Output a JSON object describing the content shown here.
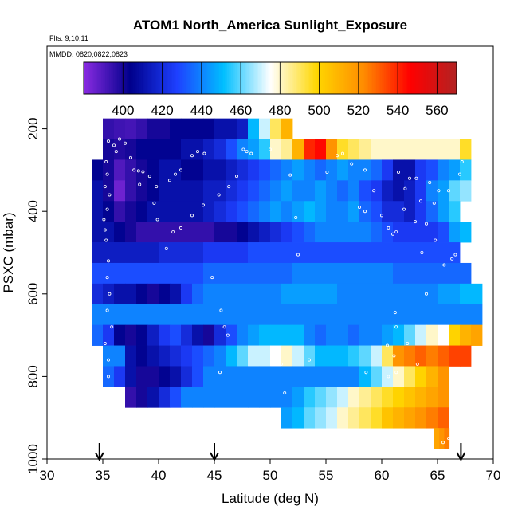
{
  "chart_data": {
    "type": "heatmap",
    "title": "ATOM1 North_America Sunlight_Exposure",
    "flights_note": "Flts: 9,10,11",
    "dates_note": "MMDD: 0820,0822,0823",
    "xlabel": "Latitude (deg N)",
    "ylabel": "PSXC (mbar)",
    "xlim": [
      30,
      70
    ],
    "ylim": [
      1000,
      0
    ],
    "x_ticks": [
      "30",
      "35",
      "40",
      "45",
      "50",
      "55",
      "60",
      "65",
      "70"
    ],
    "y_ticks": [
      "200",
      "400",
      "600",
      "800",
      "1000"
    ],
    "colorbar": {
      "range": [
        380,
        570
      ],
      "ticks": [
        "400",
        "420",
        "440",
        "460",
        "480",
        "500",
        "520",
        "540",
        "560"
      ],
      "colors": [
        "#8a2be2",
        "#00008b",
        "#1e40ff",
        "#00bfff",
        "#ffffff",
        "#ffd700",
        "#ff8c00",
        "#ff0000",
        "#b22222"
      ]
    },
    "arrows_latitude": [
      34.7,
      45.0,
      67.1
    ],
    "rows": [
      {
        "p": 200,
        "x0": 35.0,
        "dx": 1.0,
        "values": [
          395,
          393,
          392,
          395,
          400,
          400,
          405,
          405,
          405,
          405,
          410,
          410,
          415,
          450,
          470,
          490,
          510
        ]
      },
      {
        "p": 250,
        "x0": 35.0,
        "dx": 1.0,
        "values": [
          400,
          398,
          400,
          405,
          405,
          405,
          405,
          410,
          410,
          415,
          420,
          430,
          440,
          445,
          455,
          480,
          485,
          510,
          540,
          545,
          520,
          495,
          490,
          485,
          480,
          480,
          480,
          480,
          480,
          480,
          480,
          480,
          495
        ]
      },
      {
        "p": 300,
        "x0": 34.0,
        "dx": 1.0,
        "values": [
          405,
          400,
          390,
          395,
          400,
          405,
          410,
          410,
          405,
          405,
          410,
          410,
          415,
          420,
          425,
          430,
          435,
          440,
          445,
          440,
          435,
          440,
          445,
          440,
          440,
          435,
          425,
          410,
          410,
          425,
          430,
          440,
          445,
          455
        ]
      },
      {
        "p": 350,
        "x0": 34.0,
        "dx": 1.0,
        "values": [
          410,
          400,
          385,
          395,
          400,
          405,
          410,
          410,
          410,
          410,
          415,
          415,
          420,
          425,
          430,
          435,
          440,
          445,
          440,
          440,
          445,
          440,
          435,
          440,
          430,
          425,
          415,
          410,
          415,
          425,
          440,
          445,
          460,
          465
        ]
      },
      {
        "p": 400,
        "x0": 34.0,
        "dx": 1.0,
        "values": [
          410,
          405,
          395,
          400,
          405,
          410,
          410,
          410,
          410,
          410,
          415,
          420,
          425,
          430,
          435,
          440,
          445,
          440,
          445,
          450,
          445,
          440,
          440,
          445,
          435,
          430,
          420,
          420,
          415,
          425,
          435,
          445,
          455
        ]
      },
      {
        "p": 450,
        "x0": 34.0,
        "dx": 1.0,
        "values": [
          410,
          410,
          405,
          400,
          395,
          395,
          395,
          395,
          395,
          395,
          395,
          400,
          400,
          405,
          410,
          415,
          420,
          425,
          430,
          435,
          440,
          440,
          440,
          440,
          440,
          435,
          430,
          425,
          425,
          425,
          425,
          430,
          445,
          450
        ]
      },
      {
        "p": 500,
        "x0": 34.0,
        "dx": 1.0,
        "values": [
          415,
          415,
          415,
          415,
          415,
          415,
          420,
          420,
          420,
          420,
          425,
          425,
          425,
          425,
          430,
          430,
          430,
          430,
          430,
          430,
          430,
          430,
          430,
          430,
          430,
          430,
          430,
          430,
          430,
          430,
          430,
          430,
          430
        ]
      },
      {
        "p": 550,
        "x0": 34.0,
        "dx": 1.0,
        "values": [
          430,
          430,
          430,
          430,
          430,
          430,
          430,
          430,
          430,
          430,
          435,
          435,
          435,
          435,
          435,
          435,
          435,
          435,
          440,
          440,
          440,
          440,
          440,
          440,
          440,
          440,
          440,
          435,
          435,
          435,
          435,
          435,
          435,
          435
        ]
      },
      {
        "p": 600,
        "x0": 34.0,
        "dx": 1.0,
        "values": [
          420,
          415,
          410,
          410,
          405,
          400,
          405,
          410,
          425,
          435,
          440,
          440,
          440,
          440,
          440,
          440,
          440,
          445,
          445,
          445,
          445,
          445,
          440,
          440,
          440,
          440,
          440,
          440,
          440,
          440,
          440,
          445,
          445,
          450,
          450
        ]
      },
      {
        "p": 650,
        "x0": 34.0,
        "dx": 1.0,
        "values": [
          440,
          440,
          440,
          440,
          440,
          440,
          440,
          440,
          440,
          440,
          440,
          440,
          440,
          440,
          440,
          440,
          440,
          440,
          440,
          440,
          440,
          440,
          440,
          440,
          440,
          440,
          440,
          440,
          440,
          440,
          440,
          440,
          440,
          440,
          440
        ]
      },
      {
        "p": 700,
        "x0": 34.0,
        "dx": 1.0,
        "values": [
          435,
          425,
          405,
          400,
          405,
          415,
          425,
          430,
          420,
          410,
          400,
          420,
          430,
          440,
          445,
          450,
          450,
          450,
          450,
          440,
          435,
          440,
          440,
          435,
          440,
          440,
          445,
          450,
          460,
          470,
          480,
          475,
          500,
          510,
          515
        ]
      },
      {
        "p": 750,
        "x0": 35.0,
        "dx": 1.0,
        "values": [
          440,
          440,
          410,
          405,
          410,
          415,
          420,
          425,
          430,
          435,
          440,
          450,
          460,
          470,
          470,
          475,
          480,
          470,
          460,
          450,
          450,
          450,
          455,
          460,
          470,
          490,
          520,
          525,
          530,
          525,
          530,
          535,
          535
        ]
      },
      {
        "p": 800,
        "x0": 35.0,
        "dx": 1.0,
        "values": [
          435,
          425,
          410,
          400,
          400,
          405,
          410,
          420,
          430,
          440,
          440,
          440,
          440,
          440,
          440,
          440,
          440,
          440,
          440,
          440,
          440,
          440,
          440,
          450,
          460,
          470,
          480,
          490,
          500,
          510,
          520
        ]
      },
      {
        "p": 850,
        "x0": 37.0,
        "dx": 1.0,
        "values": [
          395,
          400,
          410,
          420,
          430,
          440,
          440,
          440,
          440,
          440,
          440,
          440,
          440,
          440,
          440,
          445,
          455,
          460,
          465,
          470,
          480,
          485,
          490,
          495,
          500,
          505,
          510,
          515,
          520
        ]
      },
      {
        "p": 900,
        "x0": 51.0,
        "dx": 1.0,
        "values": [
          445,
          450,
          460,
          465,
          470,
          480,
          485,
          490,
          495,
          505,
          510,
          515,
          520,
          525,
          530
        ]
      },
      {
        "p": 950,
        "x0": 64.7,
        "dx": 0.45,
        "values": [
          515,
          520,
          525
        ]
      }
    ],
    "sample_points": [
      [
        35.5,
        230
      ],
      [
        36,
        240
      ],
      [
        36.5,
        225
      ],
      [
        37,
        235
      ],
      [
        36.2,
        255
      ],
      [
        35.3,
        280
      ],
      [
        35.4,
        310
      ],
      [
        35.2,
        340
      ],
      [
        35.6,
        360
      ],
      [
        35.4,
        395
      ],
      [
        35.1,
        420
      ],
      [
        35.2,
        445
      ],
      [
        35.3,
        470
      ],
      [
        35.5,
        520
      ],
      [
        35.4,
        560
      ],
      [
        35.6,
        600
      ],
      [
        35.4,
        640
      ],
      [
        35.8,
        680
      ],
      [
        35.2,
        720
      ],
      [
        35.5,
        760
      ],
      [
        35.5,
        800
      ],
      [
        37.5,
        270
      ],
      [
        37.8,
        300
      ],
      [
        38.2,
        302
      ],
      [
        38.6,
        304
      ],
      [
        38.3,
        335
      ],
      [
        39.2,
        315
      ],
      [
        39.8,
        340
      ],
      [
        39.6,
        380
      ],
      [
        39.9,
        420
      ],
      [
        41,
        325
      ],
      [
        42,
        300
      ],
      [
        43,
        265
      ],
      [
        43.5,
        255
      ],
      [
        44.1,
        260
      ],
      [
        44,
        385
      ],
      [
        43,
        410
      ],
      [
        42,
        440
      ],
      [
        41.3,
        450
      ],
      [
        40.7,
        490
      ],
      [
        41.5,
        310
      ],
      [
        44.8,
        560
      ],
      [
        45.6,
        640
      ],
      [
        45.9,
        680
      ],
      [
        46.2,
        700
      ],
      [
        45.5,
        790
      ],
      [
        45.4,
        360
      ],
      [
        46.3,
        340
      ],
      [
        47,
        315
      ],
      [
        47.6,
        250
      ],
      [
        47.9,
        255
      ],
      [
        48.3,
        260
      ],
      [
        50,
        250
      ],
      [
        51.8,
        312
      ],
      [
        52.3,
        415
      ],
      [
        52.5,
        505
      ],
      [
        55.1,
        305
      ],
      [
        56,
        265
      ],
      [
        56.5,
        260
      ],
      [
        57.3,
        285
      ],
      [
        58.5,
        300
      ],
      [
        59.3,
        350
      ],
      [
        58,
        390
      ],
      [
        58.5,
        400
      ],
      [
        60,
        410
      ],
      [
        61.3,
        450
      ],
      [
        60.6,
        440
      ],
      [
        61,
        455
      ],
      [
        62,
        395
      ],
      [
        63,
        425
      ],
      [
        63.6,
        500
      ],
      [
        64,
        430
      ],
      [
        64.8,
        470
      ],
      [
        61.5,
        305
      ],
      [
        62.1,
        345
      ],
      [
        62.5,
        320
      ],
      [
        63.1,
        320
      ],
      [
        63.5,
        375
      ],
      [
        64.7,
        380
      ],
      [
        64.3,
        330
      ],
      [
        65.1,
        350
      ],
      [
        66,
        350
      ],
      [
        67,
        310
      ],
      [
        67.2,
        280
      ],
      [
        66.6,
        505
      ],
      [
        66.3,
        515
      ],
      [
        65.6,
        530
      ],
      [
        64,
        600
      ],
      [
        61.2,
        645
      ],
      [
        61.3,
        680
      ],
      [
        60.5,
        725
      ],
      [
        61.1,
        750
      ],
      [
        62.3,
        720
      ],
      [
        63.2,
        770
      ],
      [
        60.6,
        800
      ],
      [
        61.3,
        790
      ],
      [
        58.6,
        790
      ],
      [
        51,
        770
      ],
      [
        53.5,
        760
      ],
      [
        51.3,
        840
      ],
      [
        64.5,
        940
      ],
      [
        65.5,
        960
      ],
      [
        66,
        950
      ]
    ]
  }
}
